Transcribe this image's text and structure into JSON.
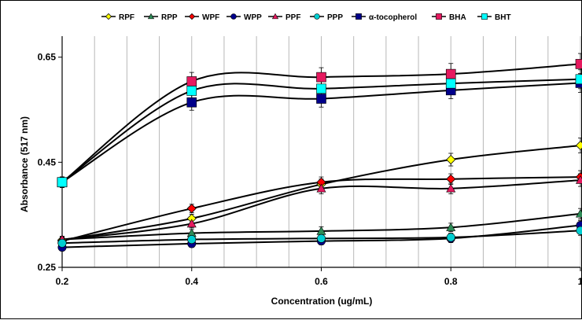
{
  "chart_data": {
    "type": "line",
    "xlabel": "Concentration (ug/mL)",
    "ylabel": "Absorbance (517 nm)",
    "x": [
      0.2,
      0.4,
      0.6,
      0.8,
      1
    ],
    "x_tick_labels": [
      "0.2",
      "0.4",
      "0.6",
      "0.8",
      "1"
    ],
    "xlim": [
      0.2,
      1.0
    ],
    "ylim": [
      0.25,
      0.69
    ],
    "y_ticks": [
      0.25,
      0.45,
      0.65
    ],
    "y_tick_labels": [
      "0.25",
      "0.45",
      "0.65"
    ],
    "grid": "vertical",
    "legend_position": "top",
    "series": [
      {
        "name": "RPF",
        "marker": "diamond",
        "color": "#FFFF00",
        "values": [
          0.302,
          0.343,
          0.408,
          0.455,
          0.482
        ],
        "errors": [
          0.006,
          0.008,
          0.01,
          0.012,
          0.014
        ]
      },
      {
        "name": "RPP",
        "marker": "triangle",
        "color": "#2E8B57",
        "values": [
          0.303,
          0.315,
          0.319,
          0.326,
          0.352
        ],
        "errors": [
          0.006,
          0.007,
          0.008,
          0.008,
          0.01
        ]
      },
      {
        "name": "WPF",
        "marker": "diamond",
        "color": "#FF0000",
        "values": [
          0.3,
          0.362,
          0.412,
          0.418,
          0.422
        ],
        "errors": [
          0.006,
          0.008,
          0.01,
          0.01,
          0.012
        ]
      },
      {
        "name": "WPP",
        "marker": "circle",
        "color": "#00008B",
        "values": [
          0.288,
          0.295,
          0.3,
          0.305,
          0.33
        ],
        "errors": [
          0.006,
          0.007,
          0.007,
          0.008,
          0.009
        ]
      },
      {
        "name": "PPF",
        "marker": "triangle",
        "color": "#E6195F",
        "values": [
          0.303,
          0.333,
          0.4,
          0.4,
          0.416
        ],
        "errors": [
          0.006,
          0.008,
          0.01,
          0.01,
          0.012
        ]
      },
      {
        "name": "PPP",
        "marker": "circle",
        "color": "#00CED1",
        "values": [
          0.296,
          0.303,
          0.305,
          0.307,
          0.32
        ],
        "errors": [
          0.006,
          0.007,
          0.008,
          0.008,
          0.009
        ]
      },
      {
        "name": "α-tocopherol",
        "marker": "square",
        "color": "#00008B",
        "values": [
          0.412,
          0.564,
          0.571,
          0.587,
          0.601
        ],
        "errors": [
          0.01,
          0.015,
          0.016,
          0.016,
          0.018
        ]
      },
      {
        "name": "BHA",
        "marker": "square",
        "color": "#E6195F",
        "values": [
          0.412,
          0.604,
          0.612,
          0.618,
          0.637
        ],
        "errors": [
          0.01,
          0.017,
          0.018,
          0.02,
          0.02
        ]
      },
      {
        "name": "BHT",
        "marker": "square",
        "color": "#00FFFF",
        "values": [
          0.412,
          0.586,
          0.59,
          0.6,
          0.608
        ],
        "errors": [
          0.01,
          0.016,
          0.016,
          0.017,
          0.018
        ]
      }
    ]
  }
}
